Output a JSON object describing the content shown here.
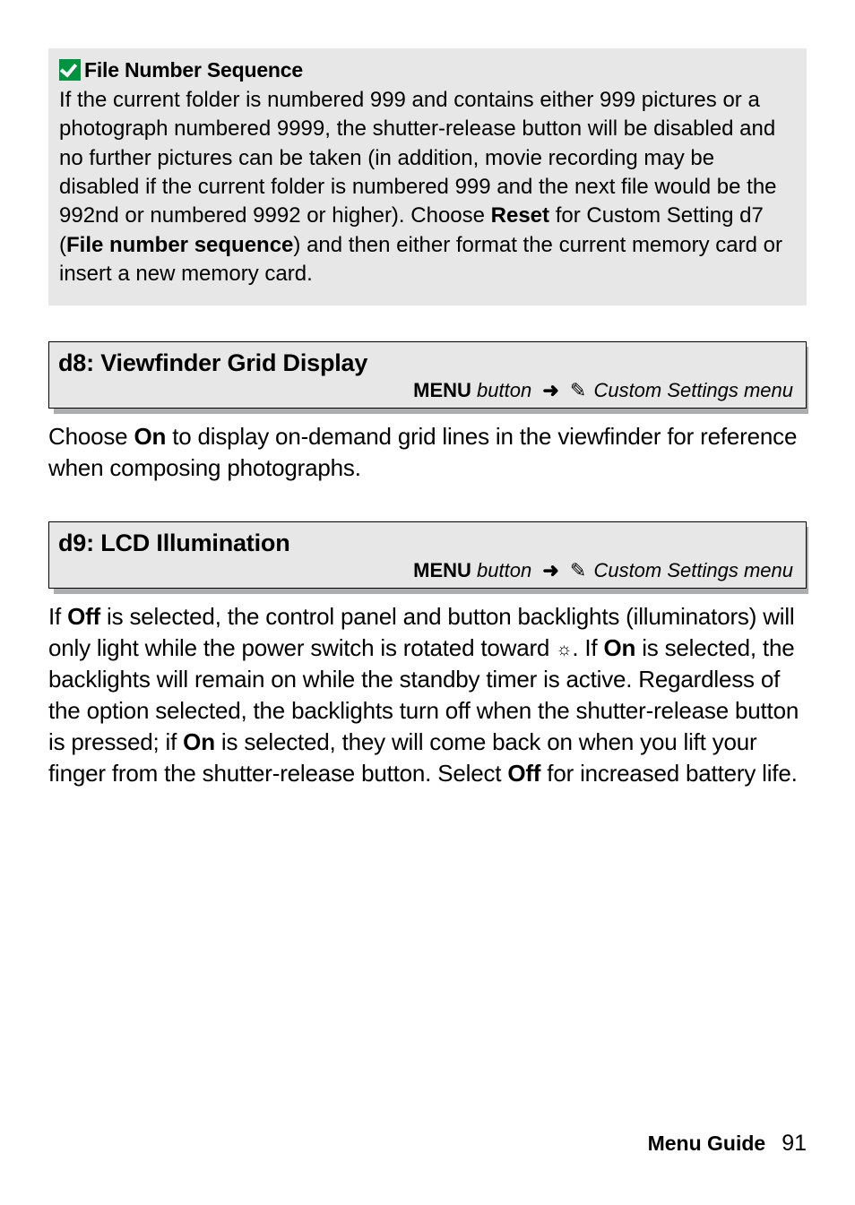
{
  "note": {
    "title": "File Number Sequence",
    "body_parts": {
      "p1": "If the current folder is numbered 999 and contains either 999 pictures or a photograph numbered 9999, the shutter-release button will be disabled and no further pictures can be taken (in addition, movie recording may be disabled if the current folder is numbered 999 and the next file would be the 992nd or numbered 9992 or higher).  Choose ",
      "b1": "Reset",
      "p2": " for Custom Setting d7 (",
      "b2": "File number sequence",
      "p3": ") and then either format the current memory card or insert a new memory card."
    }
  },
  "section_d8": {
    "title": "d8: Viewfinder Grid Display",
    "breadcrumb": {
      "menu": "MENU",
      "button": " button",
      "target": " Custom Settings menu"
    },
    "body": {
      "p1": "Choose ",
      "b1": "On",
      "p2": " to display on-demand grid lines in the viewfinder for reference when composing photographs."
    }
  },
  "section_d9": {
    "title": "d9: LCD Illumination",
    "breadcrumb": {
      "menu": "MENU",
      "button": " button",
      "target": " Custom Settings menu"
    },
    "body": {
      "p1": "If ",
      "b1": "Off",
      "p2": " is selected, the control panel and button backlights (illuminators) will only light while the power switch is rotated toward ",
      "p3": ".  If ",
      "b2": "On",
      "p4": " is selected, the backlights will remain on while the standby timer is active.  Regardless of the option selected, the backlights turn off when the shutter-release button is pressed; if ",
      "b3": "On",
      "p5": " is selected, they will come back on when you lift your finger from the shutter-release button.  Select ",
      "b4": "Off",
      "p6": " for increased battery life."
    }
  },
  "footer": {
    "label": "Menu Guide",
    "page": "91"
  },
  "icons": {
    "sun": "☼",
    "arrow": "➜",
    "pencil": "✎"
  }
}
